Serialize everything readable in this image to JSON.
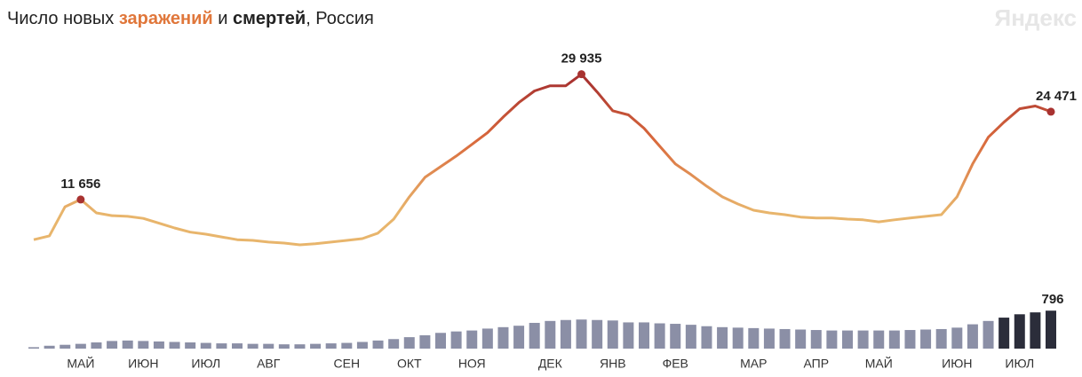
{
  "chart_data": {
    "type": "line",
    "title": [
      "Число новых ",
      "заражений",
      " и ",
      "смертей",
      ", Россия"
    ],
    "watermark": "Яндекс",
    "categories": [
      null,
      null,
      null,
      "МАЙ",
      null,
      null,
      null,
      "ИЮН",
      null,
      null,
      null,
      "ИЮЛ",
      null,
      null,
      null,
      "АВГ",
      null,
      null,
      null,
      null,
      "СЕН",
      null,
      null,
      null,
      "ОКТ",
      null,
      null,
      null,
      "НОЯ",
      null,
      null,
      null,
      null,
      "ДЕК",
      null,
      null,
      null,
      "ЯНВ",
      null,
      null,
      null,
      "ФЕВ",
      null,
      null,
      null,
      null,
      "МАР",
      null,
      null,
      null,
      "АПР",
      null,
      null,
      null,
      "МАЙ",
      null,
      null,
      null,
      null,
      "ИЮН",
      null,
      null,
      null,
      "ИЮЛ",
      null,
      null
    ],
    "ylim": [
      0,
      33000
    ],
    "y2lim": [
      0,
      800
    ],
    "series": [
      {
        "name": "заражений",
        "type": "line",
        "color_scale": [
          "#a83230",
          "#d9693c",
          "#e8b56c"
        ],
        "values": [
          5800,
          6350,
          10600,
          11656,
          9700,
          9300,
          9200,
          8900,
          8200,
          7500,
          6900,
          6600,
          6200,
          5800,
          5700,
          5450,
          5300,
          5050,
          5200,
          5450,
          5700,
          5950,
          6750,
          8800,
          12050,
          14900,
          16450,
          18000,
          19700,
          21400,
          23700,
          25800,
          27500,
          28250,
          28250,
          29935,
          27350,
          24600,
          24000,
          22050,
          19450,
          16850,
          15300,
          13600,
          12050,
          11000,
          10100,
          9700,
          9450,
          9100,
          8950,
          8950,
          8800,
          8700,
          8400,
          8700,
          8950,
          9200,
          9450,
          12050,
          16850,
          20750,
          22950,
          24900,
          25300,
          24471
        ],
        "value_labels": [
          null,
          null,
          null,
          "11 656",
          null,
          null,
          null,
          null,
          null,
          null,
          null,
          null,
          null,
          null,
          null,
          null,
          null,
          null,
          null,
          null,
          null,
          null,
          null,
          null,
          null,
          null,
          null,
          null,
          null,
          null,
          null,
          null,
          null,
          null,
          null,
          "29 935",
          null,
          null,
          null,
          null,
          null,
          null,
          null,
          null,
          null,
          null,
          null,
          null,
          null,
          null,
          null,
          null,
          null,
          null,
          null,
          null,
          null,
          null,
          null,
          null,
          null,
          null,
          null,
          null,
          null,
          "24 471"
        ]
      },
      {
        "name": "смертей",
        "type": "bar",
        "axis": "y2",
        "colors": [
          "#8b8fa6",
          "#8b8fa6",
          "#8b8fa6",
          "#8b8fa6",
          "#8b8fa6",
          "#8b8fa6",
          "#8b8fa6",
          "#8b8fa6",
          "#8b8fa6",
          "#8b8fa6",
          "#8b8fa6",
          "#8b8fa6",
          "#8b8fa6",
          "#8b8fa6",
          "#8b8fa6",
          "#8b8fa6",
          "#8b8fa6",
          "#8b8fa6",
          "#8b8fa6",
          "#8b8fa6",
          "#8b8fa6",
          "#8b8fa6",
          "#8b8fa6",
          "#8b8fa6",
          "#8b8fa6",
          "#8b8fa6",
          "#8b8fa6",
          "#8b8fa6",
          "#8b8fa6",
          "#8b8fa6",
          "#8b8fa6",
          "#8b8fa6",
          "#8b8fa6",
          "#8b8fa6",
          "#8b8fa6",
          "#8b8fa6",
          "#8b8fa6",
          "#8b8fa6",
          "#8b8fa6",
          "#8b8fa6",
          "#8b8fa6",
          "#8b8fa6",
          "#8b8fa6",
          "#8b8fa6",
          "#8b8fa6",
          "#8b8fa6",
          "#8b8fa6",
          "#8b8fa6",
          "#8b8fa6",
          "#8b8fa6",
          "#8b8fa6",
          "#8b8fa6",
          "#8b8fa6",
          "#8b8fa6",
          "#8b8fa6",
          "#8b8fa6",
          "#8b8fa6",
          "#8b8fa6",
          "#8b8fa6",
          "#8b8fa6",
          "#8b8fa6",
          "#8b8fa6",
          "#2b2d3a",
          "#2b2d3a",
          "#2b2d3a",
          "#2b2d3a"
        ],
        "values": [
          30,
          60,
          80,
          100,
          130,
          160,
          170,
          160,
          150,
          140,
          130,
          120,
          110,
          110,
          100,
          100,
          90,
          90,
          100,
          110,
          120,
          140,
          170,
          200,
          240,
          280,
          330,
          360,
          380,
          420,
          450,
          480,
          540,
          580,
          600,
          610,
          600,
          590,
          550,
          550,
          530,
          520,
          500,
          470,
          450,
          440,
          430,
          420,
          410,
          400,
          390,
          380,
          380,
          380,
          380,
          380,
          390,
          400,
          410,
          440,
          510,
          580,
          650,
          720,
          760,
          796
        ],
        "value_labels": [
          null,
          null,
          null,
          null,
          null,
          null,
          null,
          null,
          null,
          null,
          null,
          null,
          null,
          null,
          null,
          null,
          null,
          null,
          null,
          null,
          null,
          null,
          null,
          null,
          null,
          null,
          null,
          null,
          null,
          null,
          null,
          null,
          null,
          null,
          null,
          null,
          null,
          null,
          null,
          null,
          null,
          null,
          null,
          null,
          null,
          null,
          null,
          null,
          null,
          null,
          null,
          null,
          null,
          null,
          null,
          null,
          null,
          null,
          null,
          null,
          null,
          null,
          null,
          null,
          null,
          "796"
        ]
      }
    ]
  }
}
